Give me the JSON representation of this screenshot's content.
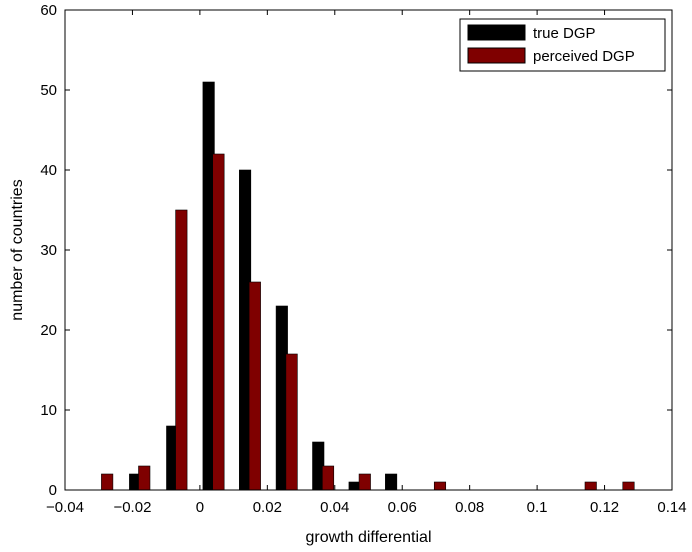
{
  "chart_data": {
    "type": "bar",
    "xlabel": "growth differential",
    "ylabel": "number of countries",
    "xlim": [
      -0.04,
      0.14
    ],
    "ylim": [
      0,
      60
    ],
    "xticks": [
      -0.04,
      -0.02,
      0,
      0.02,
      0.04,
      0.06,
      0.08,
      0.1,
      0.12,
      0.14
    ],
    "xtick_labels": [
      "−0.04",
      "−0.02",
      "0",
      "0.02",
      "0.04",
      "0.06",
      "0.08",
      "0.1",
      "0.12",
      "0.14"
    ],
    "yticks": [
      0,
      10,
      20,
      30,
      40,
      50,
      60
    ],
    "ytick_labels": [
      "0",
      "10",
      "20",
      "30",
      "40",
      "50",
      "60"
    ],
    "grid": false,
    "legend_position": "top-right",
    "bar_width": 0.0034,
    "series": [
      {
        "name": "true DGP",
        "color": "#000000",
        "x": [
          -0.0192,
          -0.0082,
          0.0026,
          0.0134,
          0.0243,
          0.0351,
          0.0459,
          0.0567
        ],
        "values": [
          2,
          8,
          51,
          40,
          23,
          6,
          1,
          2
        ]
      },
      {
        "name": "perceived DGP",
        "color": "#7f0000",
        "x": [
          -0.0275,
          -0.0165,
          -0.0055,
          0.0055,
          0.0163,
          0.0272,
          0.038,
          0.0489,
          0.0712,
          0.1159,
          0.1271
        ],
        "values": [
          2,
          3,
          35,
          42,
          26,
          17,
          3,
          2,
          1,
          1,
          1
        ]
      }
    ]
  }
}
